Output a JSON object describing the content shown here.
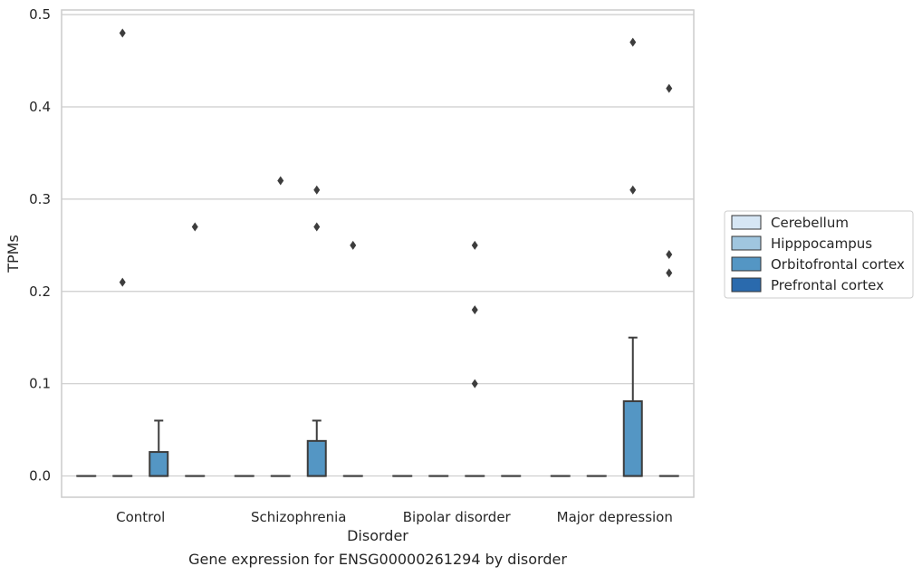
{
  "chart_data": {
    "type": "box",
    "title": "Gene expression for ENSG00000261294 by disorder",
    "xlabel": "Disorder",
    "ylabel": "TPMs",
    "ylim": [
      -0.023,
      0.505
    ],
    "yticks": [
      "0.0",
      "0.1",
      "0.2",
      "0.3",
      "0.4",
      "0.5"
    ],
    "ytick_values": [
      0,
      0.1,
      0.2,
      0.3,
      0.4,
      0.5
    ],
    "grid": true,
    "legend_position": "right",
    "categories": [
      "Control",
      "Schizophrenia",
      "Bipolar disorder",
      "Major depression"
    ],
    "series": [
      {
        "name": "Cerebellum",
        "color": "#d6e6f4",
        "boxes": [
          {
            "q1": 0,
            "median": 0,
            "q3": 0,
            "whisker_low": 0,
            "whisker_high": 0,
            "outliers": []
          },
          {
            "q1": 0,
            "median": 0,
            "q3": 0,
            "whisker_low": 0,
            "whisker_high": 0,
            "outliers": []
          },
          {
            "q1": 0,
            "median": 0,
            "q3": 0,
            "whisker_low": 0,
            "whisker_high": 0,
            "outliers": []
          },
          {
            "q1": 0,
            "median": 0,
            "q3": 0,
            "whisker_low": 0,
            "whisker_high": 0,
            "outliers": []
          }
        ]
      },
      {
        "name": "Hipppocampus",
        "color": "#a0c6df",
        "boxes": [
          {
            "q1": 0,
            "median": 0,
            "q3": 0,
            "whisker_low": 0,
            "whisker_high": 0,
            "outliers": [
              0.48,
              0.21
            ]
          },
          {
            "q1": 0,
            "median": 0,
            "q3": 0,
            "whisker_low": 0,
            "whisker_high": 0,
            "outliers": [
              0.32
            ]
          },
          {
            "q1": 0,
            "median": 0,
            "q3": 0,
            "whisker_low": 0,
            "whisker_high": 0,
            "outliers": []
          },
          {
            "q1": 0,
            "median": 0,
            "q3": 0,
            "whisker_low": 0,
            "whisker_high": 0,
            "outliers": []
          }
        ]
      },
      {
        "name": "Orbitofrontal cortex",
        "color": "#5496c4",
        "boxes": [
          {
            "q1": 0,
            "median": 0,
            "q3": 0.026,
            "whisker_low": 0,
            "whisker_high": 0.06,
            "outliers": []
          },
          {
            "q1": 0,
            "median": 0,
            "q3": 0.038,
            "whisker_low": 0,
            "whisker_high": 0.06,
            "outliers": [
              0.31,
              0.27
            ]
          },
          {
            "q1": 0,
            "median": 0,
            "q3": 0,
            "whisker_low": 0,
            "whisker_high": 0,
            "outliers": [
              0.25,
              0.18,
              0.1
            ]
          },
          {
            "q1": 0,
            "median": 0,
            "q3": 0.081,
            "whisker_low": 0,
            "whisker_high": 0.15,
            "outliers": [
              0.47,
              0.31
            ]
          }
        ]
      },
      {
        "name": "Prefrontal cortex",
        "color": "#2a6aad",
        "boxes": [
          {
            "q1": 0,
            "median": 0,
            "q3": 0,
            "whisker_low": 0,
            "whisker_high": 0,
            "outliers": [
              0.27
            ]
          },
          {
            "q1": 0,
            "median": 0,
            "q3": 0,
            "whisker_low": 0,
            "whisker_high": 0,
            "outliers": [
              0.25
            ]
          },
          {
            "q1": 0,
            "median": 0,
            "q3": 0,
            "whisker_low": 0,
            "whisker_high": 0,
            "outliers": []
          },
          {
            "q1": 0,
            "median": 0,
            "q3": 0,
            "whisker_low": 0,
            "whisker_high": 0,
            "outliers": [
              0.42,
              0.24,
              0.22
            ]
          }
        ]
      }
    ]
  }
}
